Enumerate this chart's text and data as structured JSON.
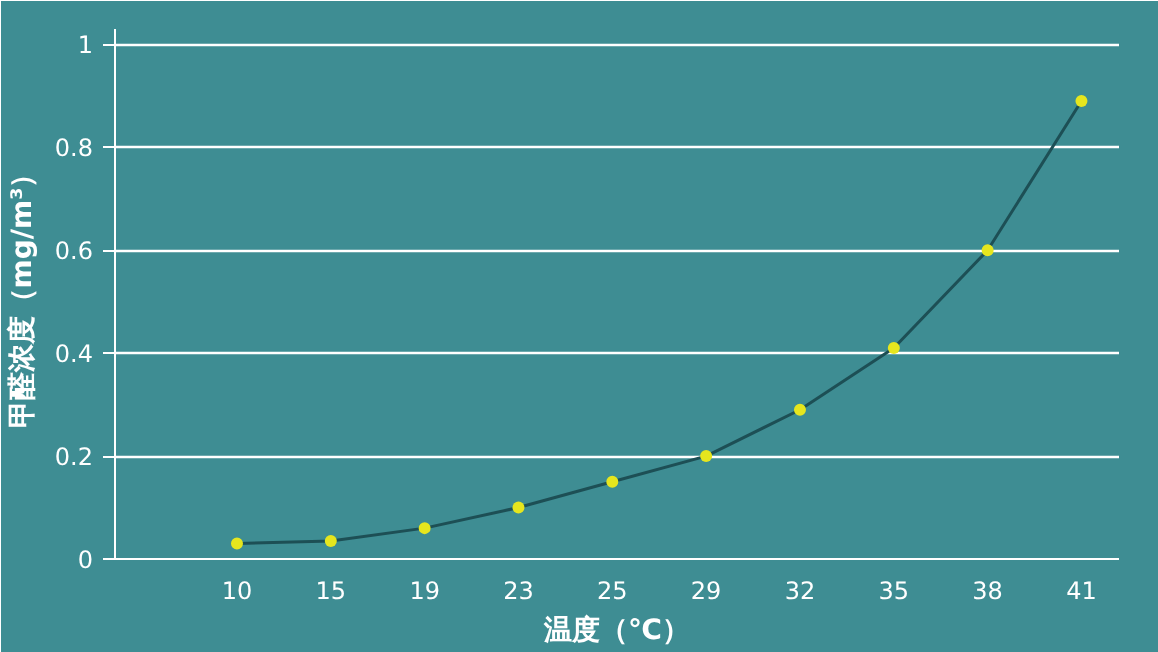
{
  "chart_data": {
    "type": "line",
    "xlabel": "温度（℃）",
    "ylabel": "甲醛浓度（mg/m³）",
    "categories": [
      "10",
      "15",
      "19",
      "23",
      "25",
      "29",
      "32",
      "35",
      "38",
      "41"
    ],
    "series": [
      {
        "color": "#e6e61e",
        "values": [
          0.03,
          0.035,
          0.06,
          0.1,
          0.15,
          0.2,
          0.29,
          0.41,
          0.6,
          0.89
        ]
      }
    ],
    "ylim": [
      0,
      1.03
    ],
    "yticks": [
      0,
      0.2,
      0.4,
      0.6,
      0.8,
      1
    ],
    "grid": "y",
    "marker": "circle",
    "line_style": "solid"
  }
}
